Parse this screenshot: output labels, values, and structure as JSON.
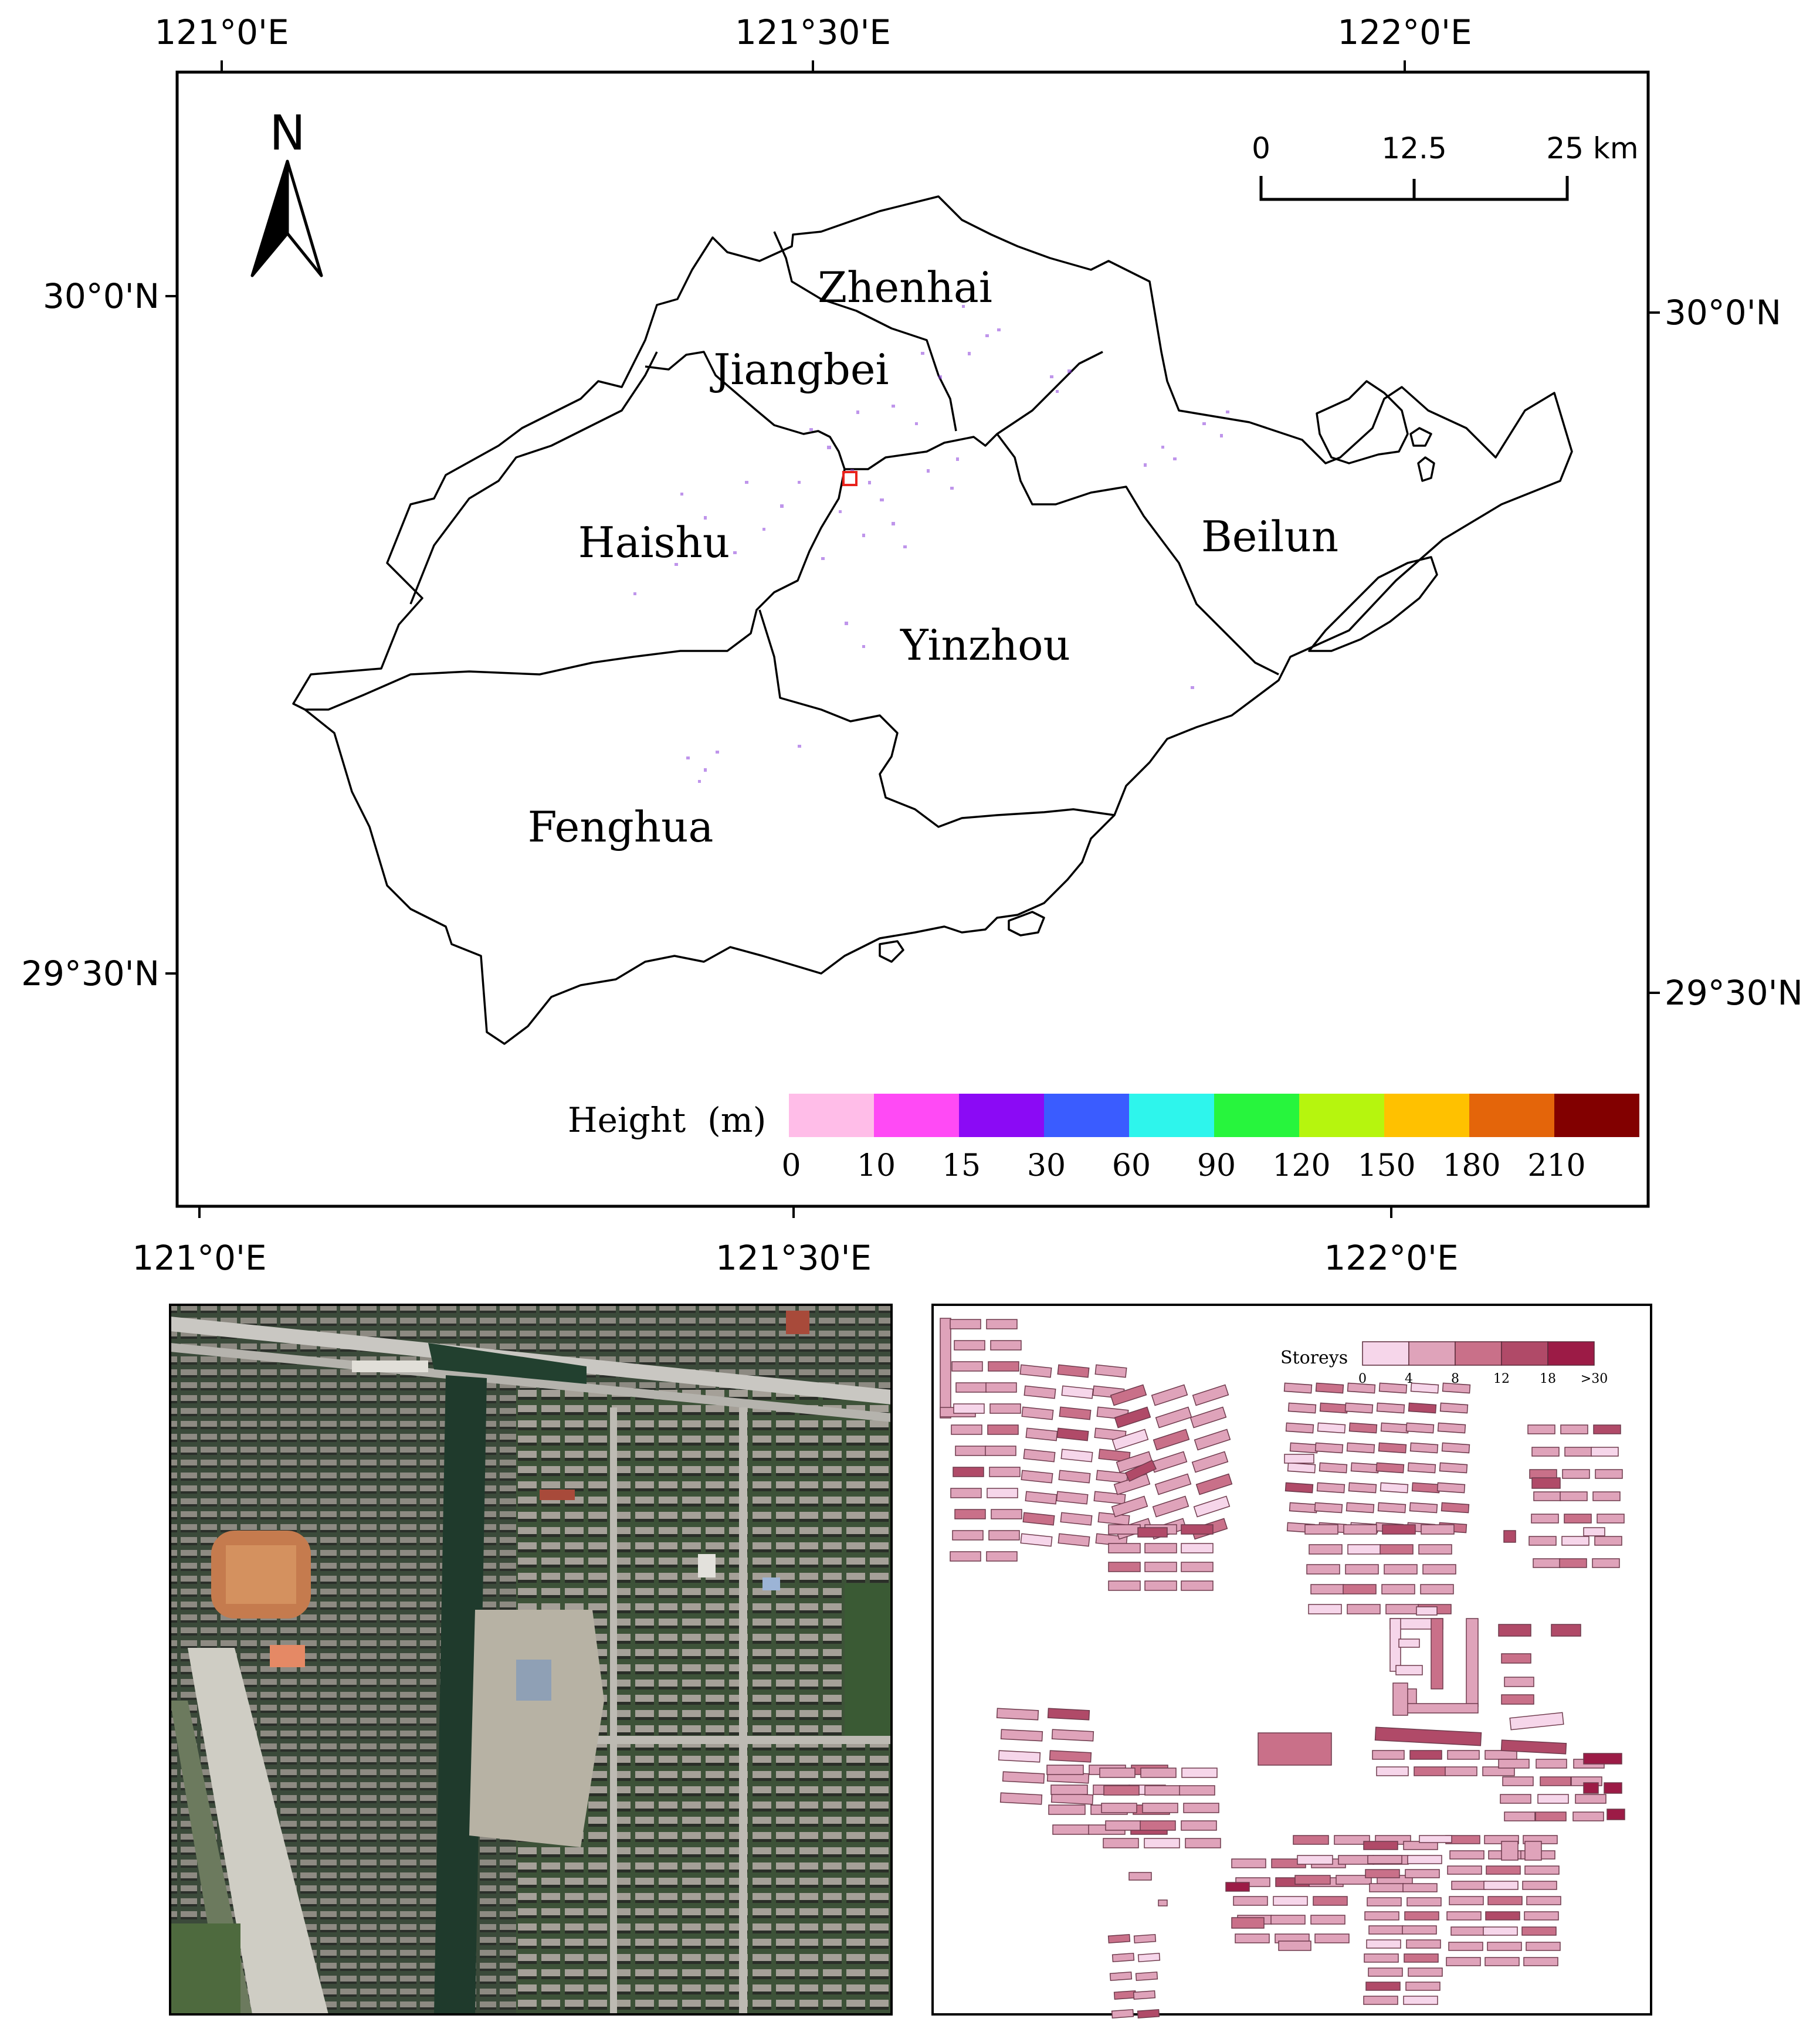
{
  "main_map": {
    "coords": {
      "top_lon": [
        "121°0'E",
        "121°30'E",
        "122°0'E"
      ],
      "bottom_lon": [
        "121°0'E",
        "121°30'E",
        "122°0'E"
      ],
      "left_lat": [
        "30°0'N",
        "29°30'N"
      ],
      "right_lat": [
        "30°0'N",
        "29°30'N"
      ]
    },
    "north_arrow": {
      "label": "N",
      "icon": "north-arrow-icon"
    },
    "scale_bar": {
      "labels": [
        "0",
        "12.5",
        "25 km"
      ]
    },
    "districts": [
      "Zhenhai",
      "Jiangbei",
      "Haishu",
      "Beilun",
      "Yinzhou",
      "Fenghua"
    ],
    "study_area_marker_color": "#e8221c",
    "legend": {
      "title": "Height  (m)",
      "ticks": [
        "0",
        "10",
        "15",
        "30",
        "60",
        "90",
        "120",
        "150",
        "180",
        "210"
      ],
      "colors": [
        "#ffbde8",
        "#ff4af5",
        "#8b0af5",
        "#3a5cff",
        "#2ef5ec",
        "#27f53d",
        "#b6f50e",
        "#ffc100",
        "#e4650a",
        "#820000"
      ]
    }
  },
  "storeys_panel": {
    "legend": {
      "title": "Storeys",
      "ticks": [
        "0",
        "4",
        "8",
        "12",
        "18",
        ">30"
      ],
      "colors": [
        "#f6d6ea",
        "#dfa3ba",
        "#c97089",
        "#b04a68",
        "#9c1b46"
      ]
    }
  }
}
